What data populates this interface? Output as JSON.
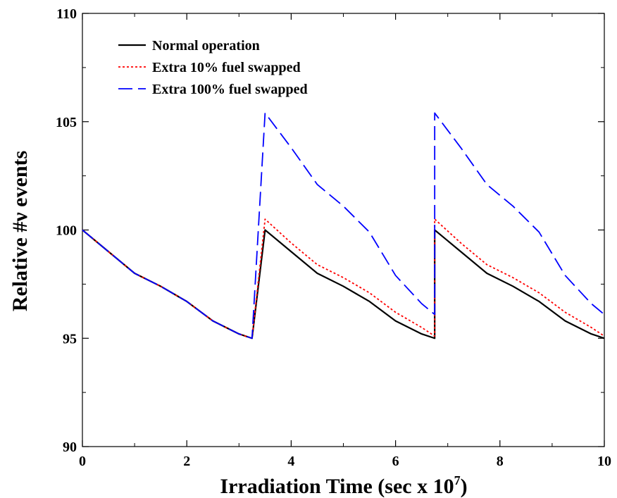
{
  "chart_data": {
    "type": "line",
    "xlabel": "Irradiation Time (sec x 10",
    "xlabel_exponent": "7",
    "xlabel_suffix": ")",
    "ylabel": "Relative #ν events",
    "xlim": [
      0,
      10
    ],
    "ylim": [
      90,
      110
    ],
    "x_ticks": [
      "0",
      "2",
      "4",
      "6",
      "8",
      "10"
    ],
    "y_ticks": [
      "90",
      "95",
      "100",
      "105",
      "110"
    ],
    "grid": false,
    "legend_position": "top-left",
    "series": [
      {
        "name": "Normal operation",
        "color": "#000000",
        "style": "solid",
        "points": [
          [
            0,
            100
          ],
          [
            0.5,
            99
          ],
          [
            1,
            98
          ],
          [
            1.5,
            97.4
          ],
          [
            2,
            96.7
          ],
          [
            2.5,
            95.8
          ],
          [
            3,
            95.2
          ],
          [
            3.25,
            95
          ],
          [
            3.5,
            100
          ],
          [
            4,
            99
          ],
          [
            4.5,
            98
          ],
          [
            5,
            97.4
          ],
          [
            5.5,
            96.7
          ],
          [
            6,
            95.8
          ],
          [
            6.5,
            95.2
          ],
          [
            6.75,
            95
          ],
          [
            6.75,
            100
          ],
          [
            7.25,
            99
          ],
          [
            7.75,
            98
          ],
          [
            8.25,
            97.4
          ],
          [
            8.75,
            96.7
          ],
          [
            9.25,
            95.8
          ],
          [
            9.75,
            95.2
          ],
          [
            10,
            95
          ]
        ]
      },
      {
        "name": "Extra 10% fuel swapped",
        "color": "#ff0000",
        "style": "dotted",
        "points": [
          [
            0,
            100
          ],
          [
            0.5,
            99
          ],
          [
            1,
            98
          ],
          [
            1.5,
            97.4
          ],
          [
            2,
            96.7
          ],
          [
            2.5,
            95.8
          ],
          [
            3,
            95.2
          ],
          [
            3.25,
            95
          ],
          [
            3.5,
            100.5
          ],
          [
            4,
            99.4
          ],
          [
            4.5,
            98.4
          ],
          [
            5,
            97.8
          ],
          [
            5.5,
            97.1
          ],
          [
            6,
            96.2
          ],
          [
            6.5,
            95.5
          ],
          [
            6.75,
            95.1
          ],
          [
            6.75,
            100.5
          ],
          [
            7.25,
            99.4
          ],
          [
            7.75,
            98.4
          ],
          [
            8.25,
            97.8
          ],
          [
            8.75,
            97.1
          ],
          [
            9.25,
            96.2
          ],
          [
            9.75,
            95.5
          ],
          [
            10,
            95.1
          ]
        ]
      },
      {
        "name": "Extra 100% fuel swapped",
        "color": "#0000ff",
        "style": "dashed",
        "points": [
          [
            0,
            100
          ],
          [
            0.5,
            99
          ],
          [
            1,
            98
          ],
          [
            1.5,
            97.4
          ],
          [
            2,
            96.7
          ],
          [
            2.5,
            95.8
          ],
          [
            3,
            95.2
          ],
          [
            3.25,
            95
          ],
          [
            3.5,
            105.4
          ],
          [
            4,
            103.8
          ],
          [
            4.5,
            102.1
          ],
          [
            5,
            101.1
          ],
          [
            5.5,
            99.9
          ],
          [
            6,
            97.9
          ],
          [
            6.5,
            96.6
          ],
          [
            6.75,
            96.1
          ],
          [
            6.75,
            105.4
          ],
          [
            7.25,
            103.8
          ],
          [
            7.75,
            102.1
          ],
          [
            8.25,
            101.1
          ],
          [
            8.75,
            99.9
          ],
          [
            9.25,
            97.9
          ],
          [
            9.75,
            96.6
          ],
          [
            10,
            96.1
          ]
        ]
      }
    ]
  }
}
